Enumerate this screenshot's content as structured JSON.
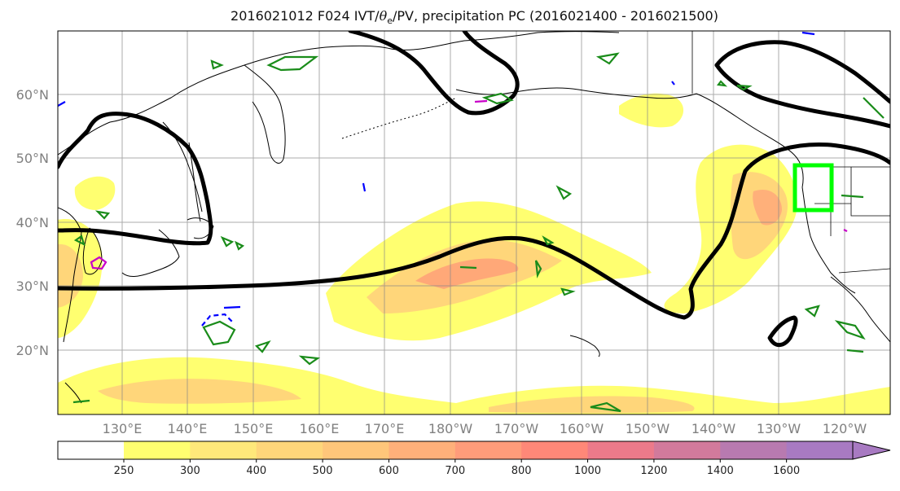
{
  "title": {
    "prefix": "2016021012 F024 IVT/",
    "theta_symbol": "θ",
    "theta_sub": "e",
    "suffix": "/PV, precipitation PC (2016021400 - 2016021500)"
  },
  "lat_labels": [
    "60°N",
    "50°N",
    "40°N",
    "30°N",
    "20°N"
  ],
  "lon_labels": [
    "130°E",
    "140°E",
    "150°E",
    "160°E",
    "170°E",
    "180°W",
    "170°W",
    "160°W",
    "150°W",
    "140°W",
    "130°W",
    "120°W"
  ],
  "colorbar": {
    "ticks": [
      "250",
      "300",
      "400",
      "500",
      "600",
      "700",
      "800",
      "1000",
      "1200",
      "1400",
      "1600"
    ],
    "colors": [
      "#ffff70",
      "#ffe87a",
      "#ffd67a",
      "#ffc67a",
      "#ffb07a",
      "#ff9c7a",
      "#ff8878",
      "#ec7a8a",
      "#d27a9c",
      "#b87ab0",
      "#a87ac2"
    ]
  },
  "colors": {
    "ivt_low": "#ffff70",
    "ivt_mid": "#ffcf7a",
    "ivt_high": "#ff9a78",
    "theta_e_contour": "#000000",
    "pv_positive": "#1a8c1a",
    "pv_negative": "#0000ff",
    "pv_magenta": "#c800c8",
    "target_box": "#00ff00",
    "grid": "#888888"
  }
}
